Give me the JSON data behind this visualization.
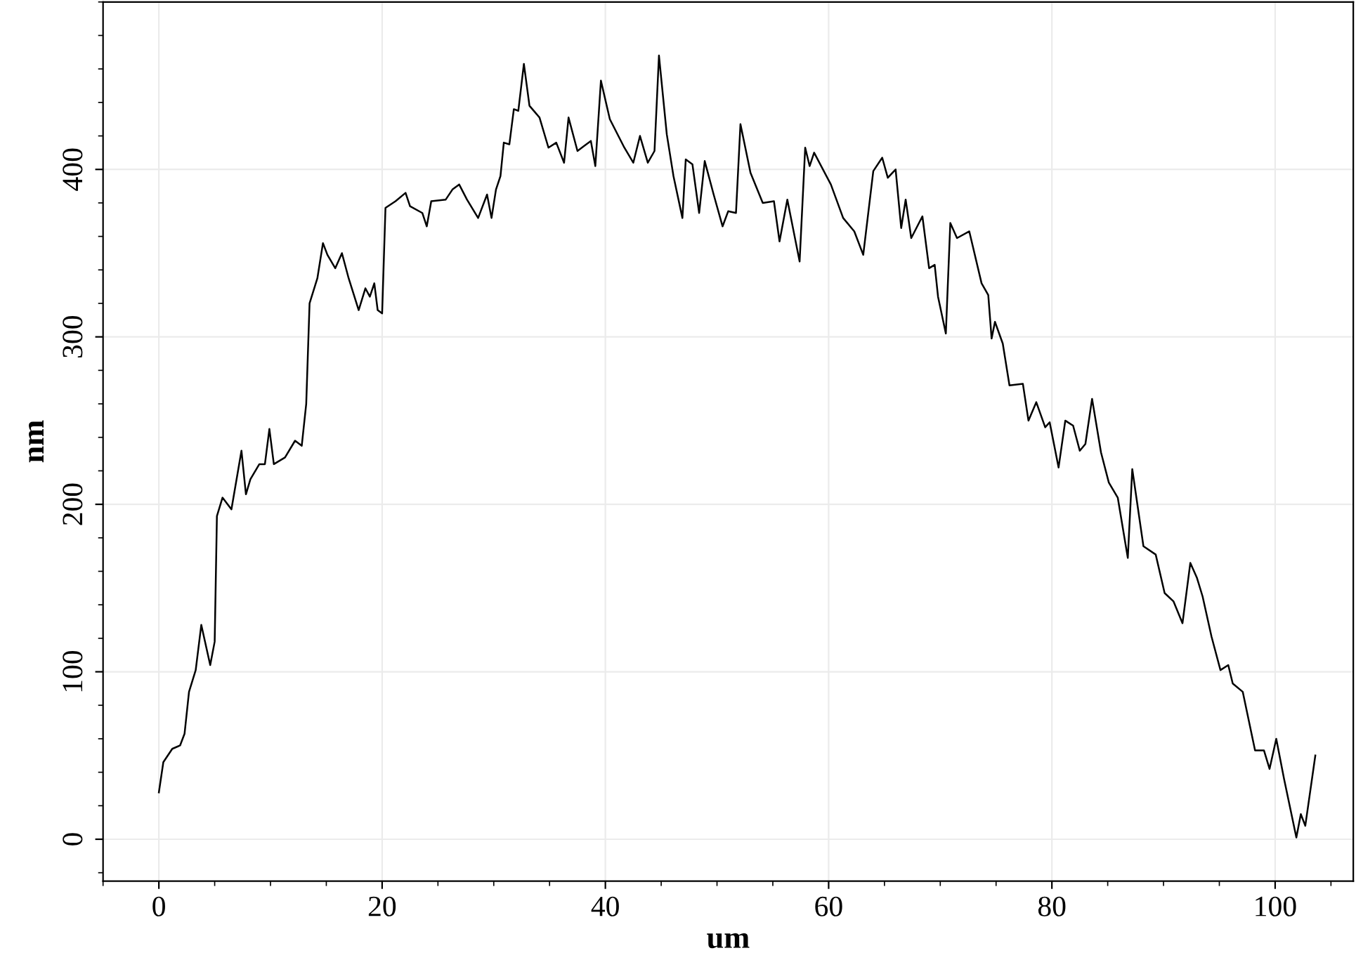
{
  "chart_data": {
    "type": "line",
    "xlabel": "um",
    "ylabel": "nm",
    "xlim": [
      -5,
      107
    ],
    "ylim": [
      -25,
      500
    ],
    "xticks": [
      0,
      20,
      40,
      60,
      80,
      100
    ],
    "yticks": [
      0,
      100,
      200,
      300,
      400
    ],
    "grid": true,
    "line_style": "solid",
    "series": [
      {
        "color": "#000000",
        "x": [
          0,
          0.4,
          1.2,
          1.9,
          2.3,
          2.7,
          3.3,
          3.8,
          4.6,
          5.0,
          5.2,
          5.7,
          6.5,
          7.4,
          7.8,
          8.2,
          9.0,
          9.5,
          9.9,
          10.3,
          11.3,
          12.2,
          12.8,
          13.2,
          13.5,
          14.2,
          14.7,
          15.1,
          15.8,
          16.4,
          17.0,
          17.9,
          18.5,
          18.9,
          19.3,
          19.6,
          20.0,
          20.3,
          21.2,
          22.1,
          22.5,
          23.6,
          24.0,
          24.4,
          25.7,
          26.3,
          26.9,
          27.6,
          28.6,
          29.4,
          29.8,
          30.2,
          30.6,
          30.9,
          31.4,
          31.8,
          32.2,
          32.7,
          33.2,
          34.1,
          34.9,
          35.6,
          36.3,
          36.7,
          37.5,
          38.1,
          38.7,
          39.1,
          39.6,
          40.4,
          41.7,
          42.5,
          43.1,
          43.8,
          44.4,
          44.8,
          45.5,
          46.1,
          46.9,
          47.2,
          47.8,
          48.4,
          48.9,
          49.7,
          50.5,
          51.0,
          51.7,
          52.1,
          53.0,
          54.1,
          55.1,
          55.6,
          56.3,
          57.4,
          57.9,
          58.3,
          58.7,
          60.2,
          61.3,
          62.3,
          63.1,
          64.0,
          64.8,
          65.3,
          66.0,
          66.5,
          66.9,
          67.4,
          68.4,
          69.0,
          69.5,
          69.8,
          70.5,
          70.9,
          71.5,
          72.6,
          73.7,
          74.3,
          74.6,
          74.9,
          75.6,
          76.2,
          77.4,
          77.9,
          78.6,
          79.4,
          79.8,
          80.6,
          81.2,
          81.9,
          82.5,
          83.0,
          83.6,
          84.4,
          85.1,
          85.9,
          86.8,
          87.2,
          88.2,
          89.3,
          90.1,
          90.9,
          91.7,
          92.4,
          93.0,
          93.5,
          94.3,
          95.1,
          95.8,
          96.2,
          97.1,
          98.2,
          99.0,
          99.5,
          100.1,
          100.8,
          101.9,
          102.3,
          102.7,
          103.6
        ],
        "values": [
          28,
          46,
          54,
          56,
          63,
          88,
          101,
          128,
          104,
          118,
          193,
          204,
          197,
          232,
          206,
          215,
          224,
          224,
          245,
          224,
          228,
          238,
          235,
          260,
          320,
          335,
          356,
          349,
          341,
          350,
          335,
          316,
          329,
          324,
          332,
          316,
          314,
          377,
          381,
          386,
          378,
          374,
          366,
          381,
          382,
          388,
          391,
          382,
          371,
          385,
          371,
          388,
          396,
          416,
          415,
          436,
          435,
          463,
          438,
          431,
          413,
          416,
          404,
          431,
          411,
          414,
          417,
          402,
          453,
          430,
          413,
          404,
          420,
          404,
          411,
          468,
          421,
          396,
          371,
          406,
          403,
          374,
          405,
          385,
          366,
          375,
          374,
          427,
          398,
          380,
          381,
          357,
          382,
          345,
          413,
          402,
          410,
          391,
          371,
          363,
          349,
          399,
          407,
          395,
          400,
          365,
          382,
          359,
          372,
          341,
          343,
          324,
          302,
          368,
          359,
          363,
          332,
          325,
          299,
          309,
          296,
          271,
          272,
          250,
          261,
          246,
          249,
          222,
          250,
          247,
          232,
          236,
          263,
          231,
          213,
          204,
          168,
          221,
          175,
          170,
          147,
          142,
          129,
          165,
          156,
          145,
          121,
          101,
          104,
          93,
          88,
          53,
          53,
          42,
          60,
          36,
          1,
          15,
          8,
          50
        ]
      }
    ]
  }
}
